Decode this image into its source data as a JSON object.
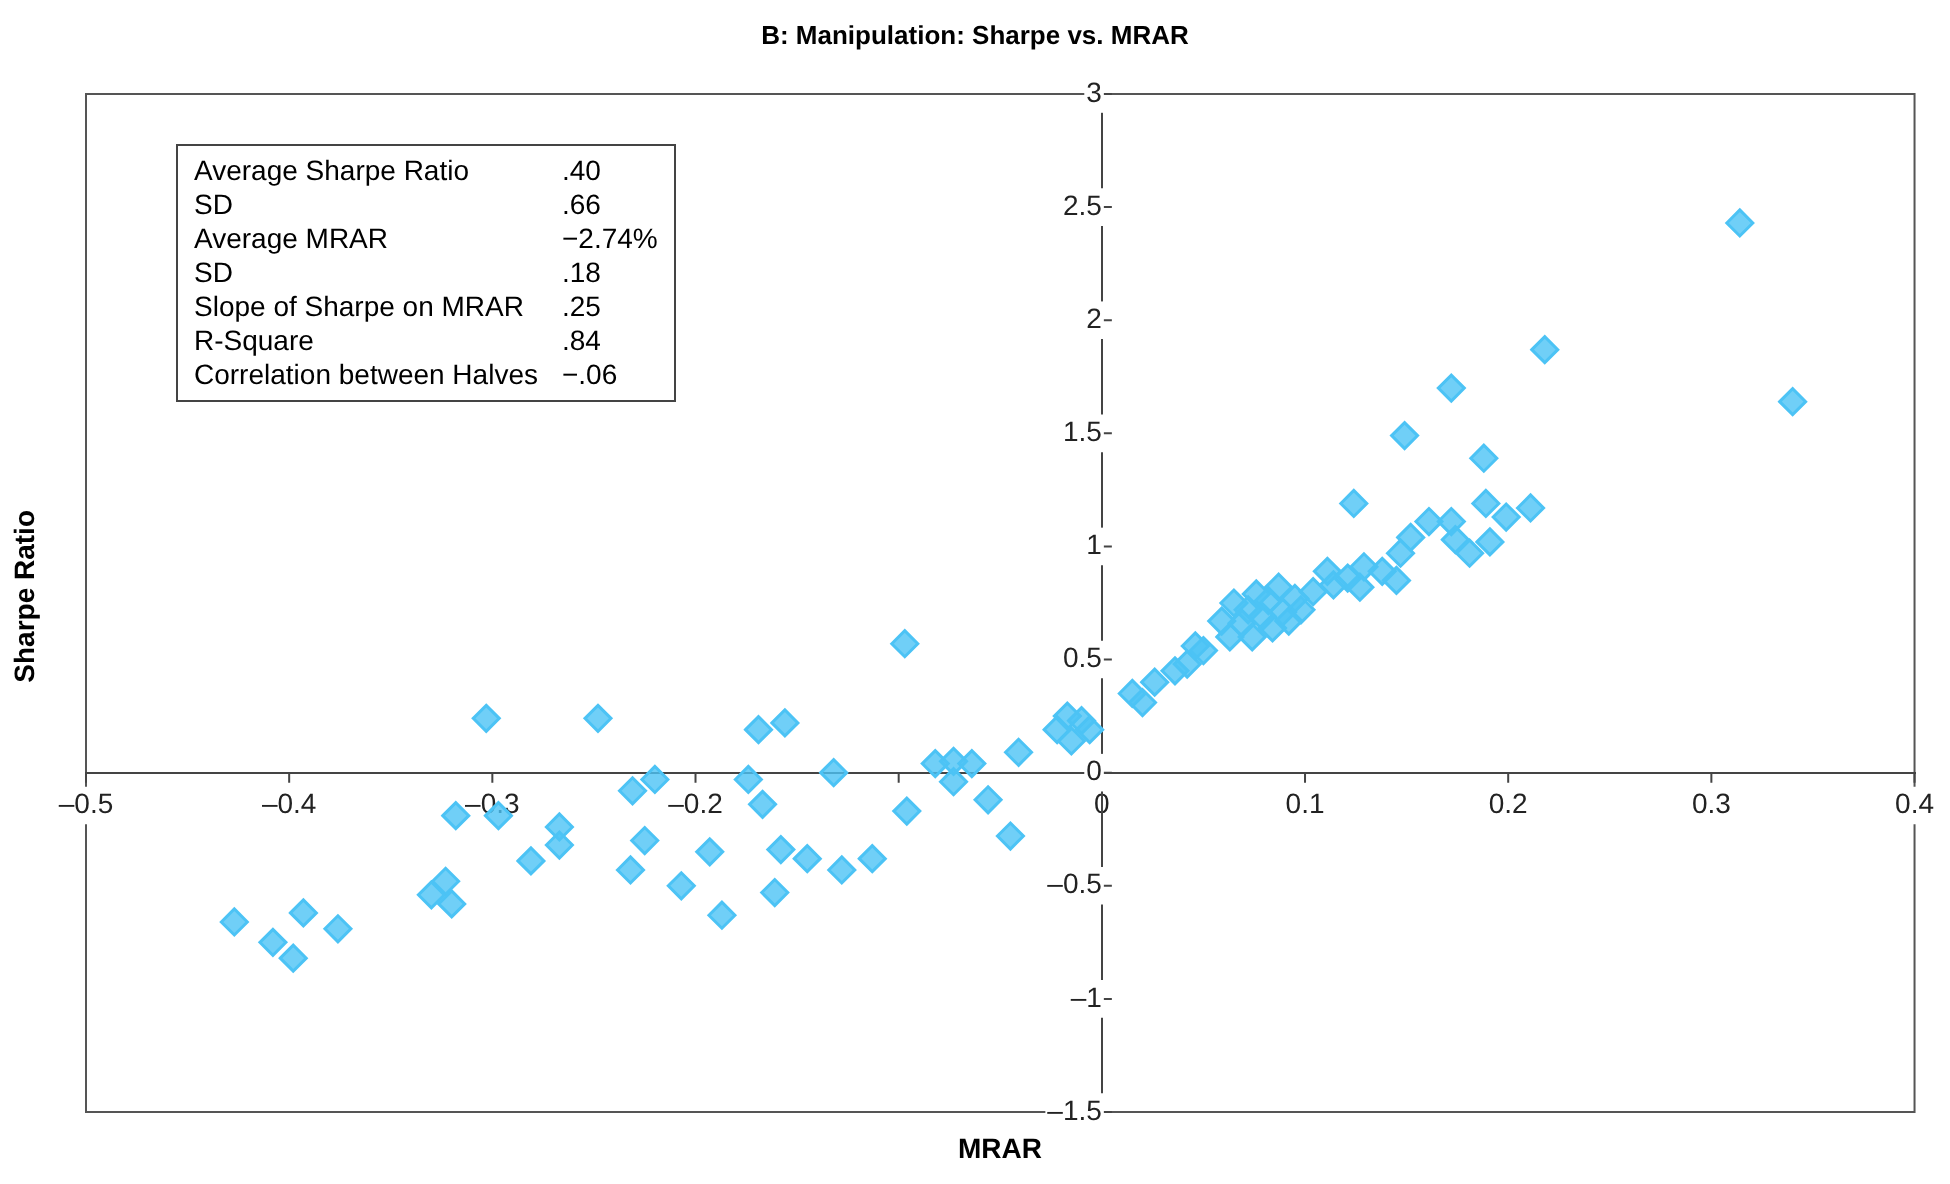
{
  "chart_data": {
    "type": "scatter",
    "title": "B: Manipulation: Sharpe vs. MRAR",
    "xlabel": "MRAR",
    "ylabel": "Sharpe Ratio",
    "annotations": [
      "Average Sharpe Ratio .40",
      "SD .66",
      "Average MRAR −2.74%",
      "SD .18",
      "Slope of Sharpe on MRAR .25",
      "R-Square .84",
      "Correlation between Halves −.06"
    ],
    "marker": "diamond",
    "grid": false,
    "xlim": [
      -0.5,
      0.4
    ],
    "xticks": [
      {
        "value": -0.5,
        "label": "–0.5"
      },
      {
        "value": -0.4,
        "label": "–0.4"
      },
      {
        "value": -0.3,
        "label": "–0.3"
      },
      {
        "value": -0.2,
        "label": "–0.2"
      },
      {
        "value": -0.1,
        "label": null
      },
      0,
      0.1,
      0.2,
      0.3,
      0.4
    ],
    "ylim": [
      -1.5,
      3
    ],
    "yticks": [
      {
        "value": -1.5,
        "label": "–1.5"
      },
      {
        "value": -1,
        "label": "–1"
      },
      {
        "value": -0.5,
        "label": "–0.5"
      },
      0,
      0.5,
      1,
      1.5,
      2,
      2.5,
      3
    ],
    "series": [
      {
        "color": "#4cc3f5",
        "x": [
          -0.427,
          -0.408,
          -0.398,
          -0.393,
          -0.376,
          -0.303,
          -0.318,
          -0.297,
          -0.267,
          -0.267,
          -0.281,
          -0.323,
          -0.33,
          -0.32,
          -0.248,
          -0.231,
          -0.22,
          -0.225,
          -0.232,
          -0.207,
          -0.193,
          -0.187,
          -0.174,
          -0.169,
          -0.167,
          -0.156,
          -0.158,
          -0.161,
          -0.145,
          -0.132,
          -0.128,
          -0.113,
          -0.097,
          -0.096,
          -0.082,
          -0.073,
          -0.073,
          -0.064,
          -0.056,
          -0.045,
          -0.041,
          -0.022,
          -0.017,
          -0.015,
          -0.01,
          -0.006,
          0.015,
          0.02,
          0.026,
          0.036,
          0.042,
          0.046,
          0.05,
          0.059,
          0.063,
          0.065,
          0.069,
          0.072,
          0.074,
          0.076,
          0.079,
          0.082,
          0.084,
          0.087,
          0.089,
          0.092,
          0.095,
          0.098,
          0.104,
          0.111,
          0.114,
          0.121,
          0.124,
          0.127,
          0.129,
          0.138,
          0.145,
          0.147,
          0.152,
          0.161,
          0.172,
          0.174,
          0.181,
          0.189,
          0.191,
          0.199,
          0.211,
          0.188,
          0.314,
          0.34,
          0.218,
          0.172,
          0.149
        ],
        "values": [
          -0.66,
          -0.75,
          -0.82,
          -0.62,
          -0.69,
          0.24,
          -0.19,
          -0.19,
          -0.24,
          -0.32,
          -0.39,
          -0.48,
          -0.54,
          -0.58,
          0.24,
          -0.08,
          -0.03,
          -0.3,
          -0.43,
          -0.5,
          -0.35,
          -0.63,
          -0.03,
          0.19,
          -0.14,
          0.22,
          -0.34,
          -0.53,
          -0.38,
          0.0,
          -0.43,
          -0.38,
          0.57,
          -0.17,
          0.04,
          0.05,
          -0.04,
          0.04,
          -0.12,
          -0.28,
          0.09,
          0.19,
          0.25,
          0.14,
          0.23,
          0.19,
          0.35,
          0.31,
          0.4,
          0.45,
          0.48,
          0.56,
          0.54,
          0.67,
          0.6,
          0.75,
          0.66,
          0.72,
          0.6,
          0.79,
          0.69,
          0.76,
          0.64,
          0.82,
          0.71,
          0.67,
          0.77,
          0.72,
          0.8,
          0.89,
          0.83,
          0.86,
          1.19,
          0.82,
          0.91,
          0.89,
          0.85,
          0.97,
          1.04,
          1.11,
          1.11,
          1.03,
          0.97,
          1.19,
          1.02,
          1.13,
          1.17,
          1.39,
          2.43,
          1.64,
          1.87,
          1.7,
          1.49
        ]
      }
    ]
  }
}
